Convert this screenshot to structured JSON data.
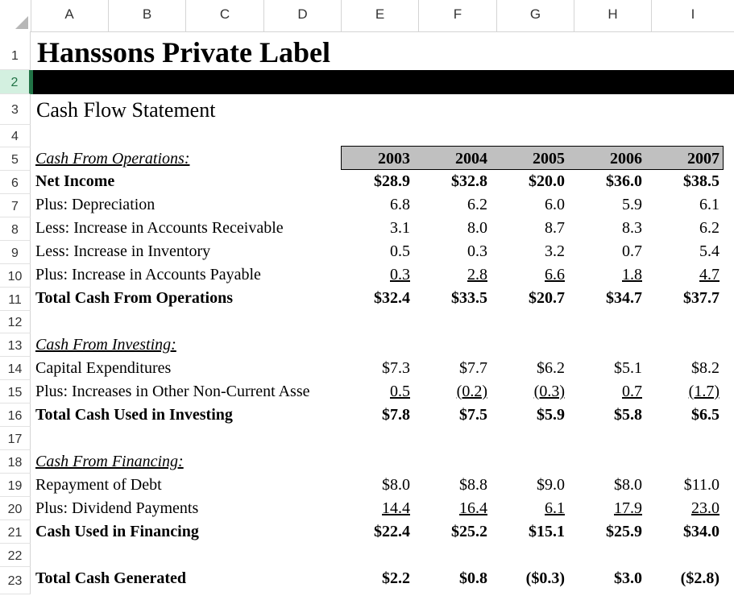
{
  "columns": [
    "A",
    "B",
    "C",
    "D",
    "E",
    "F",
    "G",
    "H",
    "I"
  ],
  "rows": [
    "1",
    "2",
    "3",
    "4",
    "5",
    "6",
    "7",
    "8",
    "9",
    "10",
    "11",
    "12",
    "13",
    "14",
    "15",
    "16",
    "17",
    "18",
    "19",
    "20",
    "21",
    "22",
    "23"
  ],
  "title": "Hanssons Private Label",
  "subtitle": "Cash Flow Statement",
  "years": [
    "2003",
    "2004",
    "2005",
    "2006",
    "2007"
  ],
  "ops": {
    "header": "Cash From Operations:",
    "net_income": {
      "label": "Net Income",
      "values": [
        "$28.9",
        "$32.8",
        "$20.0",
        "$36.0",
        "$38.5"
      ]
    },
    "depreciation": {
      "label": "Plus:  Depreciation",
      "values": [
        "6.8",
        "6.2",
        "6.0",
        "5.9",
        "6.1"
      ]
    },
    "receivable": {
      "label": "Less:  Increase in Accounts Receivable",
      "values": [
        "3.1",
        "8.0",
        "8.7",
        "8.3",
        "6.2"
      ]
    },
    "inventory": {
      "label": "Less:  Increase in Inventory",
      "values": [
        "0.5",
        "0.3",
        "3.2",
        "0.7",
        "5.4"
      ]
    },
    "payable": {
      "label": "Plus:  Increase in Accounts Payable",
      "values": [
        "0.3",
        "2.8",
        "6.6",
        "1.8",
        "4.7"
      ]
    },
    "total": {
      "label": "Total Cash From Operations",
      "values": [
        "$32.4",
        "$33.5",
        "$20.7",
        "$34.7",
        "$37.7"
      ]
    }
  },
  "inv": {
    "header": "Cash From Investing:",
    "capex": {
      "label": "Capital Expenditures",
      "values": [
        "$7.3",
        "$7.7",
        "$6.2",
        "$5.1",
        "$8.2"
      ]
    },
    "other": {
      "label": "Plus:  Increases in Other Non-Current Asse",
      "values": [
        "0.5",
        "(0.2)",
        "(0.3)",
        "0.7",
        "(1.7)"
      ]
    },
    "total": {
      "label": "Total Cash Used in Investing",
      "values": [
        "$7.8",
        "$7.5",
        "$5.9",
        "$5.8",
        "$6.5"
      ]
    }
  },
  "fin": {
    "header": "Cash From Financing:",
    "debt": {
      "label": "Repayment of Debt",
      "values": [
        "$8.0",
        "$8.8",
        "$9.0",
        "$8.0",
        "$11.0"
      ]
    },
    "dividend": {
      "label": "Plus:  Dividend Payments",
      "values": [
        "14.4",
        "16.4",
        "6.1",
        "17.9",
        "23.0"
      ]
    },
    "total": {
      "label": "Cash Used in Financing",
      "values": [
        "$22.4",
        "$25.2",
        "$15.1",
        "$25.9",
        "$34.0"
      ]
    }
  },
  "generated": {
    "label": "Total Cash Generated",
    "values": [
      "$2.2",
      "$0.8",
      "($0.3)",
      "$3.0",
      "($2.8)"
    ]
  }
}
